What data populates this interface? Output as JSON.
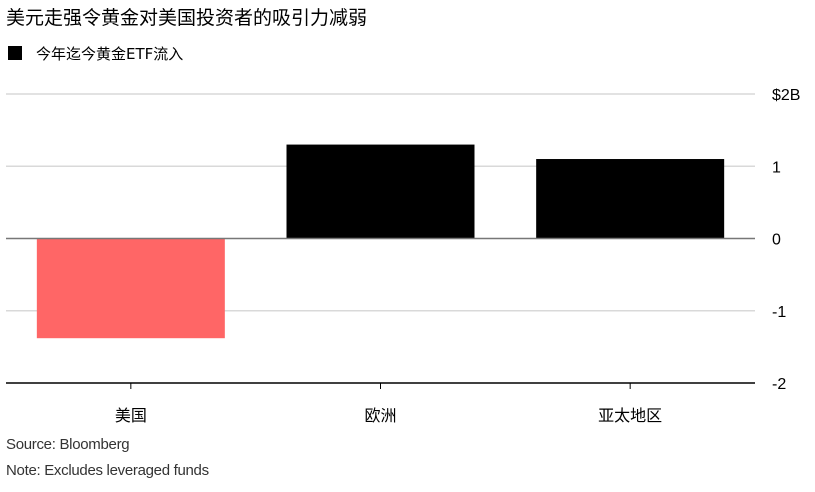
{
  "chart_data": {
    "type": "bar",
    "title": "美元走强令黄金对美国投资者的吸引力减弱",
    "legend": [
      "今年迄今黄金ETF流入"
    ],
    "categories": [
      "美国",
      "欧洲",
      "亚太地区"
    ],
    "series": [
      {
        "name": "今年迄今黄金ETF流入",
        "values": [
          -1.38,
          1.3,
          1.1
        ]
      }
    ],
    "colors": {
      "negative": "#ff6666",
      "positive": "#000000"
    },
    "ylim": [
      -2,
      2
    ],
    "yticks": [
      {
        "value": 2,
        "label": "$2B"
      },
      {
        "value": 1,
        "label": "1"
      },
      {
        "value": 0,
        "label": "0"
      },
      {
        "value": -1,
        "label": "-1"
      },
      {
        "value": -2,
        "label": "-2"
      }
    ],
    "grid": true,
    "legend_position": "top-left",
    "source": "Source: Bloomberg",
    "note": "Note: Excludes leveraged funds"
  }
}
